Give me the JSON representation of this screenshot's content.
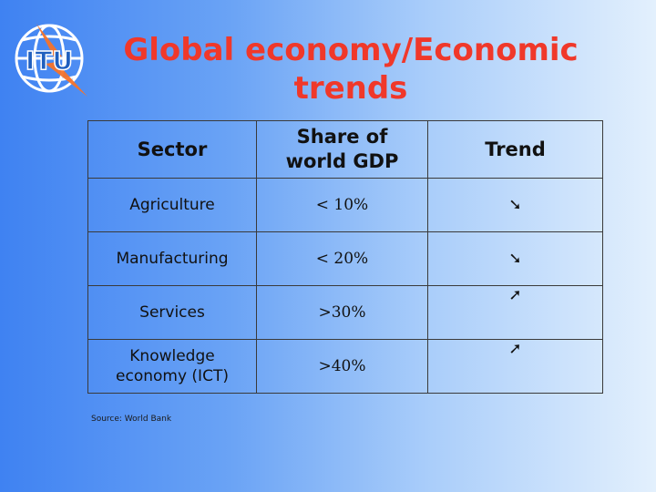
{
  "logo": {
    "text": "ITU",
    "ring_color": "#ffffff",
    "text_color": "#1f5fbf",
    "bolt_color": "#f5732a"
  },
  "title": {
    "line1": "Global economy/Economic",
    "line2": "trends",
    "color": "#f0382a"
  },
  "table": {
    "headers": {
      "sector": "Sector",
      "share_line1": "Share of",
      "share_line2": "world GDP",
      "trend": "Trend"
    },
    "rows": [
      {
        "sector_line1": "Agriculture",
        "sector_line2": "",
        "share": "< 10%",
        "trend": "➘",
        "trend_icon": "arrow-down-right-icon"
      },
      {
        "sector_line1": "Manufacturing",
        "sector_line2": "",
        "share": "< 20%",
        "trend": "➘",
        "trend_icon": "arrow-down-right-icon"
      },
      {
        "sector_line1": "Services",
        "sector_line2": "",
        "share": ">30%",
        "trend": "➚",
        "trend_icon": "arrow-up-right-icon"
      },
      {
        "sector_line1": "Knowledge",
        "sector_line2": "economy (ICT)",
        "share": ">40%",
        "trend": "➚",
        "trend_icon": "arrow-up-right-icon"
      }
    ]
  },
  "source": "Source: World Bank"
}
